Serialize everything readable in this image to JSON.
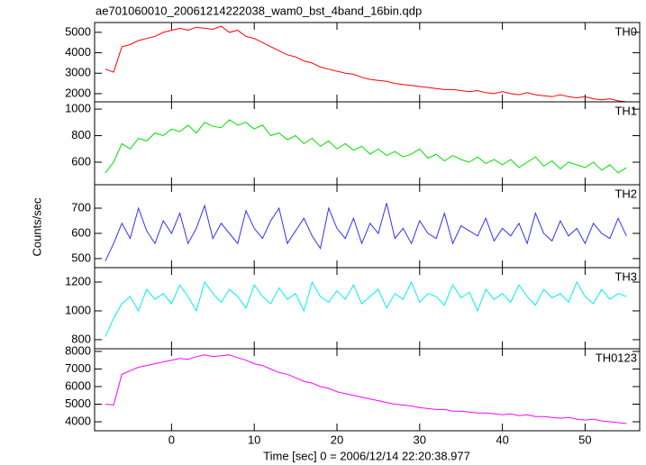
{
  "chart_data": {
    "type": "line",
    "title": "ae701060010_20061214222038_wam0_bst_4band_16bin.qdp",
    "xlabel": "Time [sec] 0 = 2006/12/14 22:20:38.977",
    "ylabel": "Counts/sec",
    "x": [
      -8,
      -7,
      -6,
      -5,
      -4,
      -3,
      -2,
      -1,
      0,
      1,
      2,
      3,
      4,
      5,
      6,
      7,
      8,
      9,
      10,
      11,
      12,
      13,
      14,
      15,
      16,
      17,
      18,
      19,
      20,
      21,
      22,
      23,
      24,
      25,
      26,
      27,
      28,
      29,
      30,
      31,
      32,
      33,
      34,
      35,
      36,
      37,
      38,
      39,
      40,
      41,
      42,
      43,
      44,
      45,
      46,
      47,
      48,
      49,
      50,
      51,
      52,
      53,
      54,
      55
    ],
    "xlim": [
      -9.3,
      56.6
    ],
    "xticks": [
      0,
      10,
      20,
      30,
      40,
      50
    ],
    "series": [
      {
        "name": "TH0",
        "color": "#ff0000",
        "ylim": [
          1600,
          5480
        ],
        "yticks": [
          2000,
          3000,
          4000,
          5000
        ],
        "values": [
          3200,
          3050,
          4300,
          4400,
          4600,
          4700,
          4800,
          5000,
          5100,
          5200,
          5100,
          5250,
          5200,
          5150,
          5300,
          5000,
          5100,
          4800,
          4700,
          4500,
          4300,
          4100,
          3900,
          3800,
          3600,
          3500,
          3300,
          3200,
          3100,
          3000,
          2950,
          2800,
          2700,
          2650,
          2600,
          2500,
          2450,
          2400,
          2350,
          2300,
          2250,
          2200,
          2200,
          2150,
          2100,
          2150,
          2050,
          2000,
          2100,
          2000,
          1950,
          2050,
          1950,
          1900,
          1850,
          1950,
          1850,
          1800,
          1850,
          1750,
          1700,
          1750,
          1650,
          1600
        ]
      },
      {
        "name": "TH1",
        "color": "#00e000",
        "ylim": [
          430,
          1055
        ],
        "yticks": [
          600,
          800,
          1000
        ],
        "values": [
          520,
          600,
          740,
          700,
          780,
          760,
          820,
          800,
          850,
          830,
          880,
          820,
          900,
          870,
          860,
          920,
          880,
          900,
          850,
          880,
          800,
          820,
          770,
          800,
          740,
          780,
          720,
          760,
          700,
          740,
          690,
          720,
          660,
          700,
          650,
          680,
          640,
          660,
          700,
          630,
          660,
          610,
          650,
          620,
          600,
          640,
          590,
          620,
          580,
          620,
          560,
          600,
          640,
          570,
          610,
          550,
          600,
          580,
          560,
          600,
          540,
          580,
          520,
          560
        ]
      },
      {
        "name": "TH2",
        "color": "#3030ff",
        "ylim": [
          464,
          793
        ],
        "yticks": [
          500,
          600,
          700
        ],
        "values": [
          490,
          560,
          640,
          580,
          700,
          610,
          560,
          650,
          600,
          680,
          560,
          620,
          710,
          580,
          640,
          600,
          560,
          690,
          620,
          580,
          650,
          700,
          560,
          610,
          660,
          590,
          540,
          700,
          620,
          580,
          660,
          560,
          640,
          600,
          720,
          580,
          620,
          560,
          650,
          600,
          580,
          680,
          560,
          630,
          610,
          590,
          660,
          570,
          620,
          590,
          640,
          560,
          680,
          600,
          570,
          650,
          590,
          620,
          560,
          640,
          600,
          580,
          660,
          590
        ]
      },
      {
        "name": "TH3",
        "color": "#00f0f0",
        "ylim": [
          737,
          1300
        ],
        "yticks": [
          800,
          1000,
          1200
        ],
        "values": [
          820,
          950,
          1050,
          1100,
          1000,
          1150,
          1080,
          1120,
          1050,
          1180,
          1100,
          1000,
          1200,
          1120,
          1060,
          1150,
          1100,
          1020,
          1180,
          1100,
          1050,
          1160,
          1080,
          1120,
          1000,
          1200,
          1100,
          1060,
          1140,
          1080,
          1180,
          1050,
          1100,
          1150,
          1020,
          1120,
          1080,
          1200,
          1060,
          1120,
          1100,
          1040,
          1180,
          1090,
          1130,
          1000,
          1150,
          1080,
          1120,
          1060,
          1180,
          1100,
          1040,
          1150,
          1090,
          1120,
          1060,
          1200,
          1100,
          1050,
          1150,
          1080,
          1120,
          1100
        ]
      },
      {
        "name": "TH0123",
        "color": "#ff00ff",
        "ylim": [
          3490,
          8150
        ],
        "yticks": [
          4000,
          5000,
          6000,
          7000,
          8000
        ],
        "values": [
          5000,
          4950,
          6700,
          6900,
          7100,
          7200,
          7300,
          7400,
          7500,
          7600,
          7550,
          7700,
          7800,
          7700,
          7750,
          7800,
          7650,
          7500,
          7300,
          7200,
          7000,
          6800,
          6700,
          6500,
          6300,
          6200,
          6000,
          5900,
          5700,
          5600,
          5500,
          5400,
          5300,
          5200,
          5100,
          5000,
          4950,
          4900,
          4800,
          4750,
          4700,
          4700,
          4600,
          4600,
          4550,
          4500,
          4500,
          4450,
          4400,
          4450,
          4350,
          4400,
          4300,
          4300,
          4250,
          4200,
          4250,
          4150,
          4100,
          4150,
          4050,
          4000,
          3950,
          3900
        ]
      }
    ]
  }
}
